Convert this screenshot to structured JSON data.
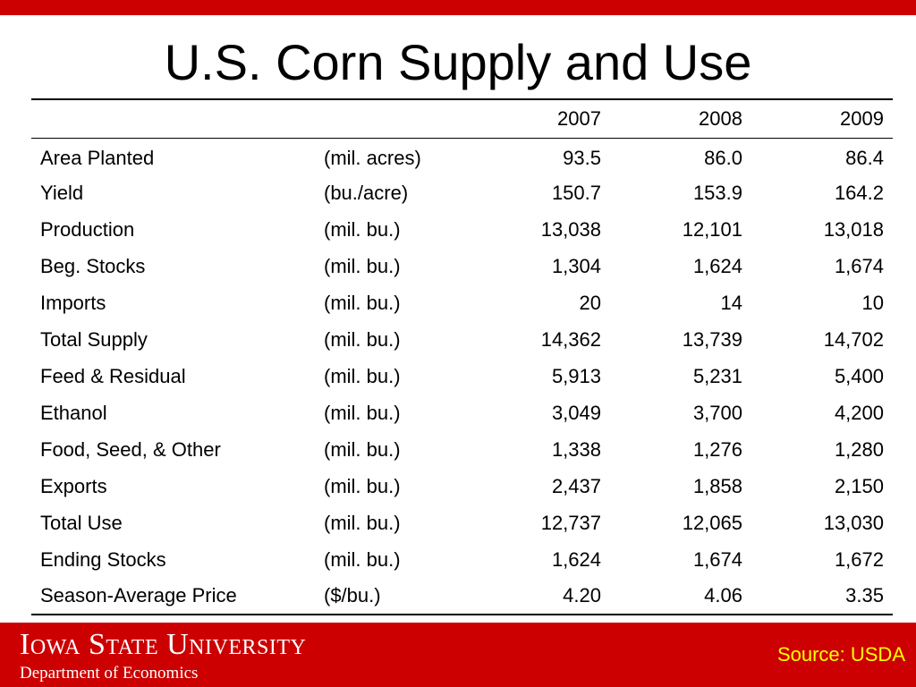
{
  "title": "U.S. Corn Supply and Use",
  "colors": {
    "accent_red": "#cc0000",
    "source_yellow": "#ffff00",
    "text": "#000000"
  },
  "table": {
    "headers": [
      "",
      "",
      "2007",
      "2008",
      "2009"
    ],
    "rows": [
      {
        "label": "Area Planted",
        "unit": "(mil. acres)",
        "values": [
          "93.5",
          "86.0",
          "86.4"
        ]
      },
      {
        "label": "Yield",
        "unit": "(bu./acre)",
        "values": [
          "150.7",
          "153.9",
          "164.2"
        ]
      },
      {
        "label": "Production",
        "unit": "(mil. bu.)",
        "values": [
          "13,038",
          "12,101",
          "13,018"
        ]
      },
      {
        "label": "Beg. Stocks",
        "unit": "(mil. bu.)",
        "values": [
          "1,304",
          "1,624",
          "1,674"
        ]
      },
      {
        "label": "Imports",
        "unit": "(mil. bu.)",
        "values": [
          "20",
          "14",
          "10"
        ]
      },
      {
        "label": "Total Supply",
        "unit": "(mil. bu.)",
        "values": [
          "14,362",
          "13,739",
          "14,702"
        ]
      },
      {
        "label": "Feed & Residual",
        "unit": "(mil. bu.)",
        "values": [
          "5,913",
          "5,231",
          "5,400"
        ]
      },
      {
        "label": "Ethanol",
        "unit": "(mil. bu.)",
        "values": [
          "3,049",
          "3,700",
          "4,200"
        ]
      },
      {
        "label": "Food, Seed, & Other",
        "unit": "(mil. bu.)",
        "values": [
          "1,338",
          "1,276",
          "1,280"
        ]
      },
      {
        "label": "Exports",
        "unit": "(mil. bu.)",
        "values": [
          "2,437",
          "1,858",
          "2,150"
        ]
      },
      {
        "label": "Total Use",
        "unit": "(mil. bu.)",
        "values": [
          "12,737",
          "12,065",
          "13,030"
        ]
      },
      {
        "label": "Ending Stocks",
        "unit": "(mil. bu.)",
        "values": [
          "1,624",
          "1,674",
          "1,672"
        ]
      },
      {
        "label": "Season-Average Price",
        "unit": "($/bu.)",
        "values": [
          "4.20",
          "4.06",
          "3.35"
        ]
      }
    ]
  },
  "footer": {
    "university": "Iowa State University",
    "department": "Department of Economics",
    "source": "Source: USDA"
  }
}
